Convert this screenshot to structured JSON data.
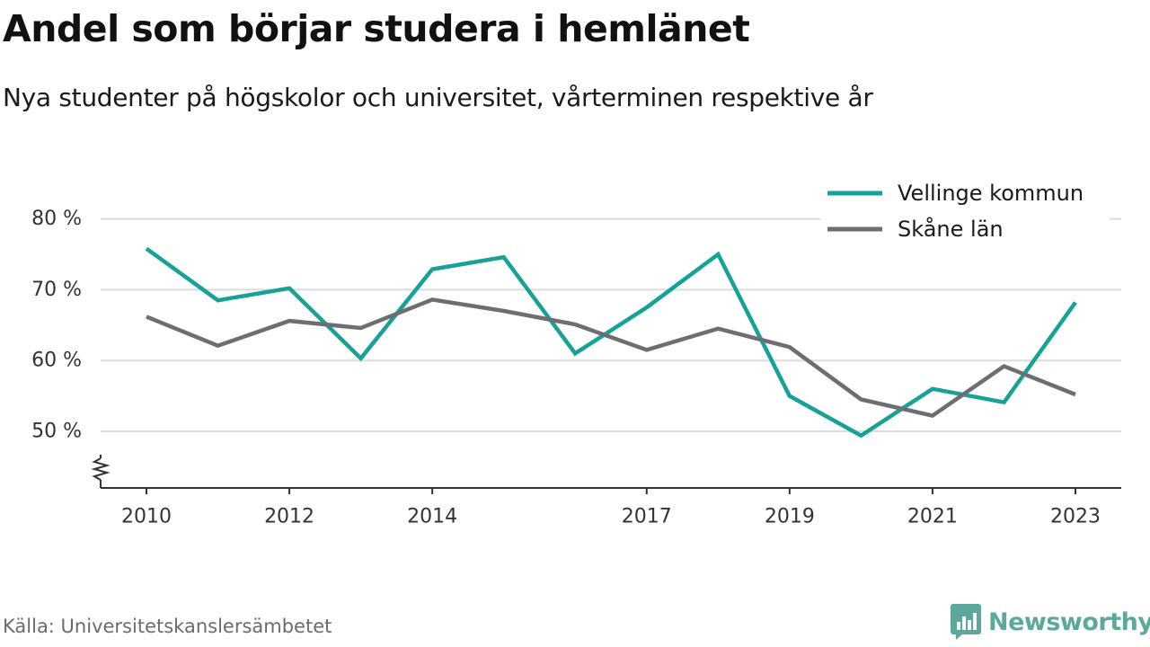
{
  "title": "Andel som börjar studera i hemlänet",
  "subtitle": "Nya studenter på högskolor och universitet, vårterminen respektive år",
  "source": "Källa: Universitetskanslersämbetet",
  "brand": {
    "name": "Newsworthy",
    "icon": "newsworthy-logo-icon",
    "color": "#5da89c"
  },
  "chart_data": {
    "type": "line",
    "x": [
      2010,
      2011,
      2012,
      2013,
      2014,
      2015,
      2016,
      2017,
      2018,
      2019,
      2020,
      2021,
      2022,
      2023
    ],
    "x_tick_labels": [
      "2010",
      "2012",
      "2014",
      "2017",
      "2019",
      "2021",
      "2023"
    ],
    "y_ticks": [
      50,
      60,
      70,
      80
    ],
    "y_tick_labels": [
      "50 %",
      "60 %",
      "70 %",
      "80 %"
    ],
    "ylim": [
      42,
      83
    ],
    "y_axis_break": true,
    "grid": "horizontal",
    "legend_position": "top-right",
    "series": [
      {
        "name": "Vellinge kommun",
        "color": "#16a296",
        "values": [
          75.8,
          68.5,
          70.2,
          60.3,
          72.9,
          74.6,
          61.0,
          67.5,
          75.0,
          55.0,
          49.4,
          56.0,
          54.1,
          68.2
        ]
      },
      {
        "name": "Skåne län",
        "color": "#6e6d73",
        "values": [
          66.2,
          62.1,
          65.6,
          64.6,
          68.6,
          67.0,
          65.1,
          61.5,
          64.5,
          61.9,
          54.5,
          52.2,
          59.2,
          55.2
        ]
      }
    ]
  }
}
